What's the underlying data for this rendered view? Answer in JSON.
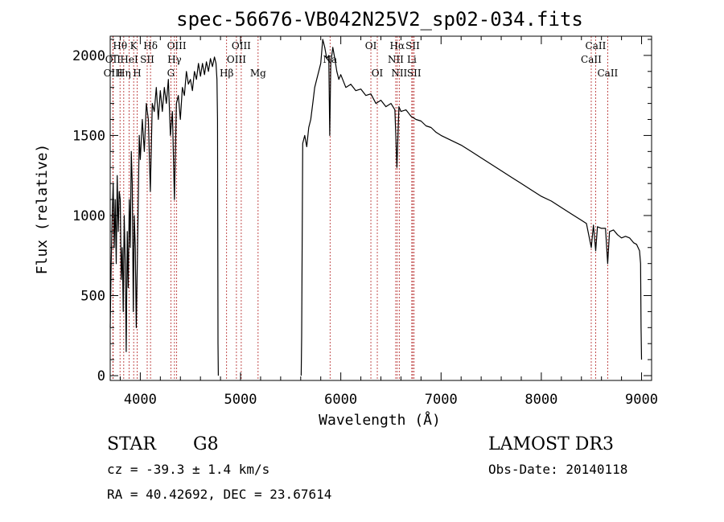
{
  "chart_data": {
    "type": "line",
    "title": "spec-56676-VB042N25V2_sp02-034.fits",
    "xlabel": "Wavelength (Å)",
    "ylabel": "Flux (relative)",
    "xlim": [
      3700,
      9100
    ],
    "ylim": [
      -30,
      2120
    ],
    "x_ticks": [
      4000,
      5000,
      6000,
      7000,
      8000,
      9000
    ],
    "y_ticks": [
      0,
      500,
      1000,
      1500,
      2000
    ],
    "grid": false,
    "series": [
      {
        "name": "flux",
        "points": [
          [
            3700,
            300
          ],
          [
            3710,
            700
          ],
          [
            3720,
            1000
          ],
          [
            3730,
            1200
          ],
          [
            3740,
            800
          ],
          [
            3750,
            1100
          ],
          [
            3760,
            700
          ],
          [
            3770,
            1250
          ],
          [
            3780,
            900
          ],
          [
            3790,
            1150
          ],
          [
            3800,
            1100
          ],
          [
            3810,
            600
          ],
          [
            3820,
            800
          ],
          [
            3830,
            400
          ],
          [
            3840,
            1000
          ],
          [
            3850,
            700
          ],
          [
            3860,
            150
          ],
          [
            3870,
            900
          ],
          [
            3880,
            550
          ],
          [
            3890,
            1100
          ],
          [
            3900,
            800
          ],
          [
            3910,
            1400
          ],
          [
            3920,
            1200
          ],
          [
            3930,
            400
          ],
          [
            3940,
            1000
          ],
          [
            3950,
            800
          ],
          [
            3960,
            300
          ],
          [
            3970,
            700
          ],
          [
            3980,
            1100
          ],
          [
            3990,
            1500
          ],
          [
            4000,
            1350
          ],
          [
            4020,
            1600
          ],
          [
            4040,
            1400
          ],
          [
            4060,
            1700
          ],
          [
            4080,
            1600
          ],
          [
            4100,
            1150
          ],
          [
            4120,
            1700
          ],
          [
            4140,
            1650
          ],
          [
            4160,
            1800
          ],
          [
            4180,
            1600
          ],
          [
            4200,
            1780
          ],
          [
            4220,
            1650
          ],
          [
            4240,
            1800
          ],
          [
            4260,
            1700
          ],
          [
            4280,
            1850
          ],
          [
            4300,
            1500
          ],
          [
            4320,
            1650
          ],
          [
            4340,
            1100
          ],
          [
            4360,
            1700
          ],
          [
            4380,
            1750
          ],
          [
            4400,
            1600
          ],
          [
            4420,
            1800
          ],
          [
            4440,
            1750
          ],
          [
            4460,
            1900
          ],
          [
            4480,
            1820
          ],
          [
            4500,
            1850
          ],
          [
            4520,
            1780
          ],
          [
            4540,
            1900
          ],
          [
            4560,
            1850
          ],
          [
            4580,
            1950
          ],
          [
            4600,
            1870
          ],
          [
            4620,
            1950
          ],
          [
            4640,
            1880
          ],
          [
            4660,
            1960
          ],
          [
            4680,
            1900
          ],
          [
            4700,
            1980
          ],
          [
            4720,
            1930
          ],
          [
            4740,
            1990
          ],
          [
            4755,
            1950
          ],
          [
            4765,
            1850
          ],
          [
            4770,
            1600
          ],
          [
            4775,
            200
          ],
          [
            4778,
            0
          ],
          [
            4782,
            null
          ],
          [
            5600,
            null
          ],
          [
            5605,
            0
          ],
          [
            5610,
            250
          ],
          [
            5620,
            1450
          ],
          [
            5640,
            1500
          ],
          [
            5660,
            1430
          ],
          [
            5680,
            1550
          ],
          [
            5700,
            1600
          ],
          [
            5720,
            1700
          ],
          [
            5740,
            1800
          ],
          [
            5760,
            1850
          ],
          [
            5780,
            1900
          ],
          [
            5800,
            1950
          ],
          [
            5820,
            2100
          ],
          [
            5840,
            2050
          ],
          [
            5860,
            1980
          ],
          [
            5880,
            2000
          ],
          [
            5890,
            1500
          ],
          [
            5900,
            1950
          ],
          [
            5920,
            2050
          ],
          [
            5940,
            1980
          ],
          [
            5960,
            1900
          ],
          [
            5980,
            1850
          ],
          [
            6000,
            1880
          ],
          [
            6050,
            1800
          ],
          [
            6100,
            1820
          ],
          [
            6150,
            1780
          ],
          [
            6200,
            1790
          ],
          [
            6250,
            1750
          ],
          [
            6300,
            1760
          ],
          [
            6350,
            1700
          ],
          [
            6400,
            1720
          ],
          [
            6450,
            1680
          ],
          [
            6500,
            1700
          ],
          [
            6540,
            1660
          ],
          [
            6560,
            1300
          ],
          [
            6580,
            1680
          ],
          [
            6600,
            1650
          ],
          [
            6650,
            1660
          ],
          [
            6700,
            1620
          ],
          [
            6750,
            1600
          ],
          [
            6800,
            1590
          ],
          [
            6850,
            1560
          ],
          [
            6900,
            1550
          ],
          [
            6950,
            1520
          ],
          [
            7000,
            1500
          ],
          [
            7100,
            1470
          ],
          [
            7200,
            1440
          ],
          [
            7300,
            1400
          ],
          [
            7400,
            1360
          ],
          [
            7500,
            1320
          ],
          [
            7600,
            1280
          ],
          [
            7700,
            1240
          ],
          [
            7800,
            1200
          ],
          [
            7900,
            1160
          ],
          [
            8000,
            1120
          ],
          [
            8100,
            1090
          ],
          [
            8200,
            1050
          ],
          [
            8300,
            1010
          ],
          [
            8400,
            970
          ],
          [
            8450,
            950
          ],
          [
            8498,
            800
          ],
          [
            8520,
            940
          ],
          [
            8542,
            780
          ],
          [
            8560,
            930
          ],
          [
            8600,
            920
          ],
          [
            8640,
            920
          ],
          [
            8662,
            700
          ],
          [
            8680,
            900
          ],
          [
            8720,
            910
          ],
          [
            8760,
            880
          ],
          [
            8800,
            860
          ],
          [
            8840,
            870
          ],
          [
            8880,
            860
          ],
          [
            8920,
            830
          ],
          [
            8950,
            820
          ],
          [
            8980,
            780
          ],
          [
            8990,
            700
          ],
          [
            8995,
            300
          ],
          [
            9000,
            100
          ]
        ]
      }
    ],
    "spectral_lines": [
      {
        "label": "Hθ",
        "wavelength": 3798,
        "row": 1
      },
      {
        "label": "OII",
        "wavelength": 3727,
        "row": 2
      },
      {
        "label": "OIII",
        "wavelength": 3729,
        "row": 3
      },
      {
        "label": "Hη",
        "wavelength": 3835,
        "row": 3
      },
      {
        "label": "K",
        "wavelength": 3934,
        "row": 1
      },
      {
        "label": "H",
        "wavelength": 3969,
        "row": 3
      },
      {
        "label": "HeI",
        "wavelength": 3889,
        "row": 2
      },
      {
        "label": "SII",
        "wavelength": 4069,
        "row": 2
      },
      {
        "label": "Hδ",
        "wavelength": 4102,
        "row": 1
      },
      {
        "label": "OIII",
        "wavelength": 4363,
        "row": 1
      },
      {
        "label": "Hγ",
        "wavelength": 4341,
        "row": 2
      },
      {
        "label": "G",
        "wavelength": 4305,
        "row": 3
      },
      {
        "label": "Hβ",
        "wavelength": 4861,
        "row": 3
      },
      {
        "label": "OIII",
        "wavelength": 4959,
        "row": 2
      },
      {
        "label": "OIII",
        "wavelength": 5007,
        "row": 1
      },
      {
        "label": "Mg",
        "wavelength": 5175,
        "row": 3
      },
      {
        "label": "Na",
        "wavelength": 5893,
        "row": 2
      },
      {
        "label": "OI",
        "wavelength": 6300,
        "row": 1
      },
      {
        "label": "OI",
        "wavelength": 6364,
        "row": 3
      },
      {
        "label": "Hα",
        "wavelength": 6563,
        "row": 1
      },
      {
        "label": "NII",
        "wavelength": 6548,
        "row": 2
      },
      {
        "label": "NII",
        "wavelength": 6583,
        "row": 3
      },
      {
        "label": "SII",
        "wavelength": 6717,
        "row": 1
      },
      {
        "label": "Li",
        "wavelength": 6708,
        "row": 2
      },
      {
        "label": "SII",
        "wavelength": 6731,
        "row": 3
      },
      {
        "label": "CaII",
        "wavelength": 8498,
        "row": 2
      },
      {
        "label": "CaII",
        "wavelength": 8542,
        "row": 1
      },
      {
        "label": "CaII",
        "wavelength": 8662,
        "row": 3
      }
    ]
  },
  "info": {
    "object_class": "STAR",
    "subclass": "G8",
    "redshift": "cz = -39.3 ± 1.4 km/s",
    "coords": "RA =  40.42692, DEC =  23.67614",
    "survey": "LAMOST DR3",
    "obs_date": "Obs-Date: 20140118"
  },
  "colors": {
    "spectrum": "#000000",
    "line_markers": "#b22222",
    "axes": "#000000"
  }
}
